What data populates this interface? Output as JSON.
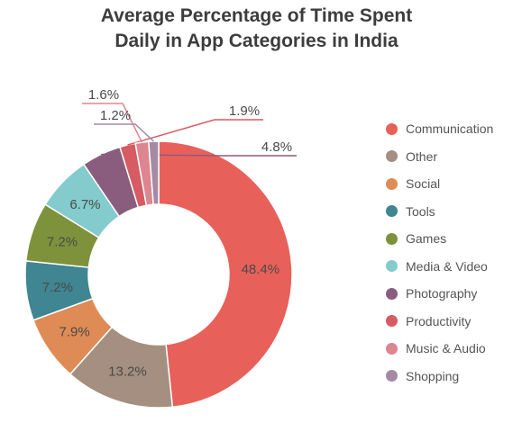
{
  "chart_data": {
    "type": "pie",
    "variant": "donut",
    "title_line1": "Average Percentage of Time Spent",
    "title_line2": "Daily in App Categories in India",
    "legend_position": "right",
    "series": [
      {
        "name": "Communication",
        "value": 48.4,
        "label": "48.4%",
        "color": "#E8605A"
      },
      {
        "name": "Other",
        "value": 13.2,
        "label": "13.2%",
        "color": "#A48F80"
      },
      {
        "name": "Social",
        "value": 7.9,
        "label": "7.9%",
        "color": "#DE8B55"
      },
      {
        "name": "Tools",
        "value": 7.2,
        "label": "7.2%",
        "color": "#3F8592"
      },
      {
        "name": "Games",
        "value": 7.2,
        "label": "7.2%",
        "color": "#7E923B"
      },
      {
        "name": "Media & Video",
        "value": 6.7,
        "label": "6.7%",
        "color": "#83CBCC"
      },
      {
        "name": "Photography",
        "value": 4.8,
        "label": "4.8%",
        "color": "#8A5D7E"
      },
      {
        "name": "Productivity",
        "value": 1.9,
        "label": "1.9%",
        "color": "#D65B62"
      },
      {
        "name": "Music & Audio",
        "value": 1.6,
        "label": "1.6%",
        "color": "#DD8590"
      },
      {
        "name": "Shopping",
        "value": 1.2,
        "label": "1.2%",
        "color": "#A48AA5"
      }
    ]
  }
}
